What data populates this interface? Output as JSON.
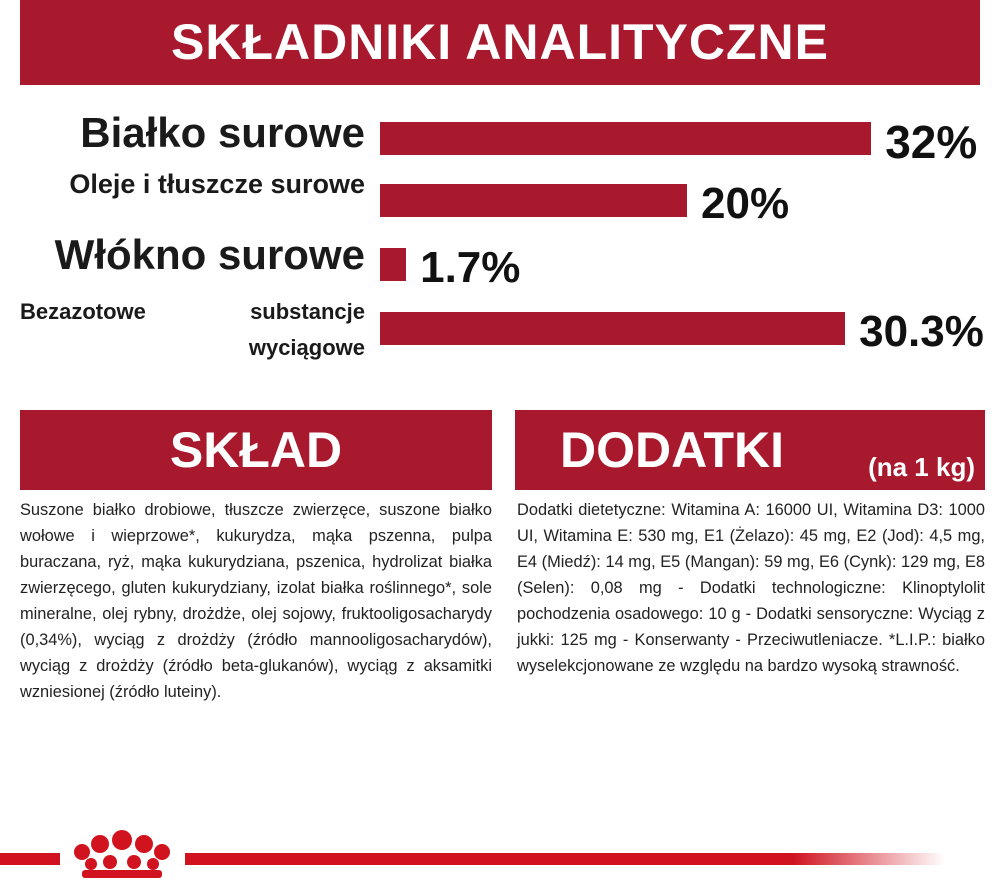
{
  "header": {
    "title": "SKŁADNIKI ANALITYCZNE"
  },
  "analysis": {
    "items": [
      {
        "label": "Białko surowe",
        "value": 32,
        "value_label": "32%"
      },
      {
        "label": "Oleje i tłuszcze surowe",
        "value": 20,
        "value_label": "20%"
      },
      {
        "label": "Włókno surowe",
        "value": 1.7,
        "value_label": "1.7%"
      },
      {
        "label": "Bezazotowe substancje wyciągowe",
        "value": 30.3,
        "value_label": "30.3%"
      }
    ]
  },
  "composition": {
    "title": "SKŁAD",
    "text": "Suszone białko drobiowe, tłuszcze zwierzęce, suszone białko wołowe i wieprzowe*, kukurydza, mąka pszenna, pulpa buraczana, ryż, mąka kukurydziana, pszenica, hydrolizat białka zwierzęcego, gluten kukurydziany, izolat białka roślinnego*, sole mineralne, olej rybny, drożdże, olej sojowy, fruktooligosacharydy (0,34%), wyciąg z drożdży (źródło mannooligosacharydów), wyciąg z drożdży (źródło beta-glukanów), wyciąg z aksamitki wzniesionej (źródło luteiny)."
  },
  "additives": {
    "title": "DODATKI",
    "subtitle": "(na 1 kg)",
    "text": "Dodatki dietetyczne: Witamina A: 16000 UI, Witamina D3: 1000 UI, Witamina E: 530 mg, E1 (Żelazo): 45 mg, E2 (Jod): 4,5 mg, E4 (Miedź): 14 mg, E5 (Mangan): 59 mg, E6 (Cynk): 129 mg, E8 (Selen): 0,08 mg - Dodatki technologiczne: Klinoptylolit pochodzenia osadowego: 10 g - Dodatki sensoryczne: Wyciąg z jukki: 125 mg - Konserwanty - Przeciwutleniacze. *L.I.P.: białko wyselekcjonowane ze względu na bardzo wysoką strawność."
  }
}
